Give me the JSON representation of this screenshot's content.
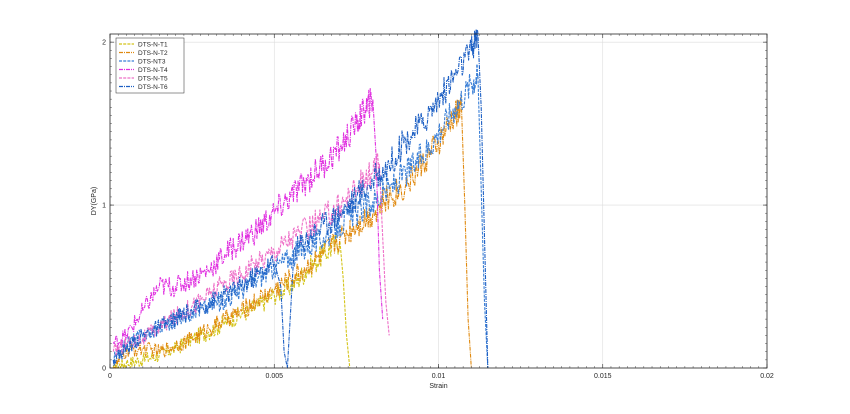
{
  "chart_data": {
    "type": "line",
    "title": "",
    "xlabel": "Strain",
    "ylabel": "DY(GPa)",
    "xlim": [
      0,
      0.02
    ],
    "ylim": [
      0,
      2.05
    ],
    "x_ticks": [
      0,
      0.005,
      0.01,
      0.015,
      0.02
    ],
    "x_tick_labels": [
      "0",
      "0.005",
      "0.01",
      "0.015",
      "0.02"
    ],
    "y_ticks": [
      0,
      1,
      2
    ],
    "y_tick_labels": [
      "0",
      "1",
      "2"
    ],
    "grid": true,
    "legend_position": "top-left",
    "series": [
      {
        "name": "DTS-N-T1",
        "color": "#d4c41a",
        "points": [
          [
            0.0001,
            0.0
          ],
          [
            0.0005,
            0.03
          ],
          [
            0.001,
            0.05
          ],
          [
            0.0015,
            0.08
          ],
          [
            0.002,
            0.12
          ],
          [
            0.0025,
            0.18
          ],
          [
            0.003,
            0.22
          ],
          [
            0.0035,
            0.28
          ],
          [
            0.004,
            0.33
          ],
          [
            0.0045,
            0.38
          ],
          [
            0.005,
            0.45
          ],
          [
            0.0055,
            0.5
          ],
          [
            0.006,
            0.6
          ],
          [
            0.0065,
            0.7
          ],
          [
            0.007,
            0.78
          ],
          [
            0.0071,
            0.55
          ],
          [
            0.0072,
            0.2
          ],
          [
            0.0073,
            0.0
          ]
        ]
      },
      {
        "name": "DTS-N-T2",
        "color": "#e08a10",
        "points": [
          [
            0.0001,
            0.0
          ],
          [
            0.0005,
            0.1
          ],
          [
            0.001,
            0.12
          ],
          [
            0.0015,
            0.1
          ],
          [
            0.002,
            0.14
          ],
          [
            0.0025,
            0.18
          ],
          [
            0.003,
            0.24
          ],
          [
            0.0035,
            0.3
          ],
          [
            0.004,
            0.35
          ],
          [
            0.0045,
            0.42
          ],
          [
            0.005,
            0.48
          ],
          [
            0.0055,
            0.55
          ],
          [
            0.006,
            0.62
          ],
          [
            0.0065,
            0.7
          ],
          [
            0.007,
            0.8
          ],
          [
            0.0075,
            0.88
          ],
          [
            0.008,
            0.95
          ],
          [
            0.0085,
            1.05
          ],
          [
            0.009,
            1.12
          ],
          [
            0.0095,
            1.25
          ],
          [
            0.01,
            1.38
          ],
          [
            0.0105,
            1.55
          ],
          [
            0.0107,
            1.6
          ],
          [
            0.0108,
            1.0
          ],
          [
            0.0109,
            0.3
          ],
          [
            0.011,
            0.0
          ]
        ]
      },
      {
        "name": "DTS-NT3",
        "color": "#3a7fd6",
        "points": [
          [
            0.0001,
            0.05
          ],
          [
            0.0005,
            0.15
          ],
          [
            0.001,
            0.2
          ],
          [
            0.0015,
            0.25
          ],
          [
            0.002,
            0.3
          ],
          [
            0.0025,
            0.35
          ],
          [
            0.003,
            0.38
          ],
          [
            0.0035,
            0.42
          ],
          [
            0.004,
            0.48
          ],
          [
            0.0045,
            0.55
          ],
          [
            0.005,
            0.62
          ],
          [
            0.0055,
            0.68
          ],
          [
            0.006,
            0.75
          ],
          [
            0.0065,
            0.8
          ],
          [
            0.007,
            0.88
          ],
          [
            0.0075,
            0.95
          ],
          [
            0.008,
            1.02
          ],
          [
            0.0085,
            1.1
          ],
          [
            0.009,
            1.2
          ],
          [
            0.0095,
            1.3
          ],
          [
            0.01,
            1.45
          ],
          [
            0.0105,
            1.6
          ],
          [
            0.011,
            1.75
          ],
          [
            0.0112,
            1.8
          ],
          [
            0.0113,
            1.1
          ],
          [
            0.0114,
            0.4
          ],
          [
            0.0115,
            0.0
          ]
        ]
      },
      {
        "name": "DTS-N-T4",
        "color": "#e030e0",
        "points": [
          [
            0.0001,
            0.15
          ],
          [
            0.0005,
            0.2
          ],
          [
            0.001,
            0.35
          ],
          [
            0.0015,
            0.5
          ],
          [
            0.002,
            0.5
          ],
          [
            0.0025,
            0.55
          ],
          [
            0.003,
            0.6
          ],
          [
            0.0035,
            0.7
          ],
          [
            0.004,
            0.78
          ],
          [
            0.0045,
            0.85
          ],
          [
            0.005,
            0.95
          ],
          [
            0.0055,
            1.05
          ],
          [
            0.006,
            1.15
          ],
          [
            0.0065,
            1.25
          ],
          [
            0.007,
            1.35
          ],
          [
            0.0075,
            1.5
          ],
          [
            0.0078,
            1.6
          ],
          [
            0.008,
            1.65
          ],
          [
            0.0081,
            1.3
          ],
          [
            0.0082,
            0.6
          ],
          [
            0.0083,
            0.3
          ]
        ]
      },
      {
        "name": "DTS-N-T5",
        "color": "#ee70c8",
        "points": [
          [
            0.0001,
            0.1
          ],
          [
            0.0005,
            0.15
          ],
          [
            0.001,
            0.18
          ],
          [
            0.0015,
            0.25
          ],
          [
            0.002,
            0.32
          ],
          [
            0.0025,
            0.38
          ],
          [
            0.003,
            0.45
          ],
          [
            0.0035,
            0.52
          ],
          [
            0.004,
            0.58
          ],
          [
            0.0045,
            0.65
          ],
          [
            0.005,
            0.72
          ],
          [
            0.0055,
            0.8
          ],
          [
            0.006,
            0.85
          ],
          [
            0.0065,
            0.92
          ],
          [
            0.007,
            1.0
          ],
          [
            0.0075,
            1.1
          ],
          [
            0.008,
            1.2
          ],
          [
            0.0082,
            1.25
          ],
          [
            0.0083,
            0.8
          ],
          [
            0.0084,
            0.4
          ],
          [
            0.0085,
            0.2
          ]
        ]
      },
      {
        "name": "DTS-N-T6",
        "color": "#1c5fc4",
        "points": [
          [
            0.0001,
            0.05
          ],
          [
            0.0005,
            0.12
          ],
          [
            0.001,
            0.2
          ],
          [
            0.0015,
            0.25
          ],
          [
            0.002,
            0.3
          ],
          [
            0.0025,
            0.35
          ],
          [
            0.003,
            0.4
          ],
          [
            0.0035,
            0.45
          ],
          [
            0.004,
            0.5
          ],
          [
            0.0045,
            0.58
          ],
          [
            0.005,
            0.65
          ],
          [
            0.0052,
            0.5
          ],
          [
            0.0053,
            0.1
          ],
          [
            0.0054,
            0.0
          ],
          [
            0.0056,
            0.72
          ],
          [
            0.006,
            0.8
          ],
          [
            0.0065,
            0.88
          ],
          [
            0.007,
            0.95
          ],
          [
            0.0075,
            1.05
          ],
          [
            0.008,
            1.15
          ],
          [
            0.0085,
            1.25
          ],
          [
            0.009,
            1.4
          ],
          [
            0.0095,
            1.5
          ],
          [
            0.01,
            1.65
          ],
          [
            0.0105,
            1.8
          ],
          [
            0.011,
            1.95
          ],
          [
            0.0112,
            2.05
          ],
          [
            0.0113,
            1.6
          ],
          [
            0.0114,
            0.8
          ],
          [
            0.0115,
            0.0
          ]
        ]
      }
    ]
  }
}
